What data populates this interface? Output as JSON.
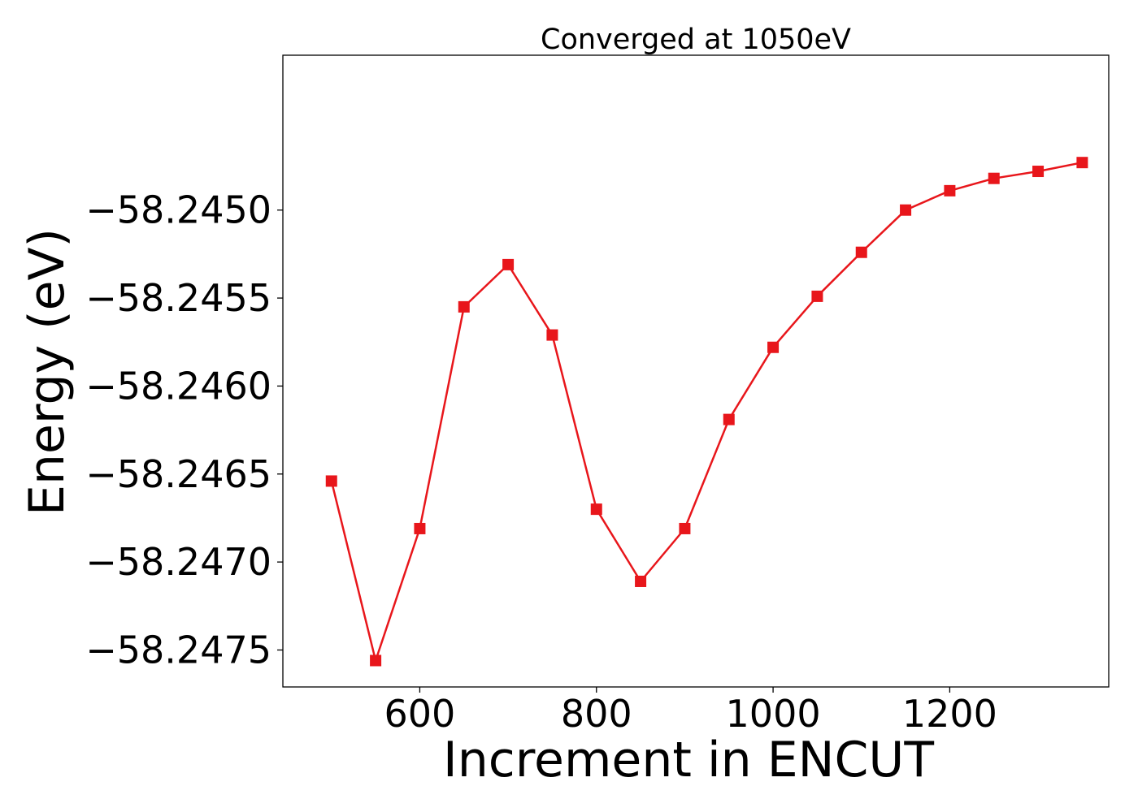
{
  "chart_data": {
    "type": "line",
    "title": "Converged at 1050eV",
    "xlabel": "Increment in ENCUT",
    "ylabel": "Energy (eV)",
    "xlim": [
      445,
      1380
    ],
    "ylim": [
      -58.24771,
      -58.24412
    ],
    "xticks": [
      600,
      800,
      1000,
      1200
    ],
    "xtick_labels": [
      "600",
      "800",
      "1000",
      "1200"
    ],
    "yticks": [
      -58.2475,
      -58.247,
      -58.2465,
      -58.246,
      -58.2455,
      -58.245
    ],
    "ytick_labels": [
      "−58.2475",
      "−58.2470",
      "−58.2465",
      "−58.2460",
      "−58.2455",
      "−58.2450"
    ],
    "grid": false,
    "series": [
      {
        "color": "#e8161b",
        "marker": "square",
        "x": [
          500,
          550,
          600,
          650,
          700,
          750,
          800,
          850,
          900,
          950,
          1000,
          1050,
          1100,
          1150,
          1200,
          1250,
          1300,
          1350
        ],
        "y": [
          -58.24654,
          -58.24756,
          -58.24681,
          -58.24555,
          -58.24531,
          -58.24571,
          -58.2467,
          -58.24711,
          -58.24681,
          -58.24619,
          -58.24578,
          -58.24549,
          -58.24524,
          -58.245,
          -58.24489,
          -58.24482,
          -58.24478,
          -58.24473
        ]
      }
    ]
  }
}
